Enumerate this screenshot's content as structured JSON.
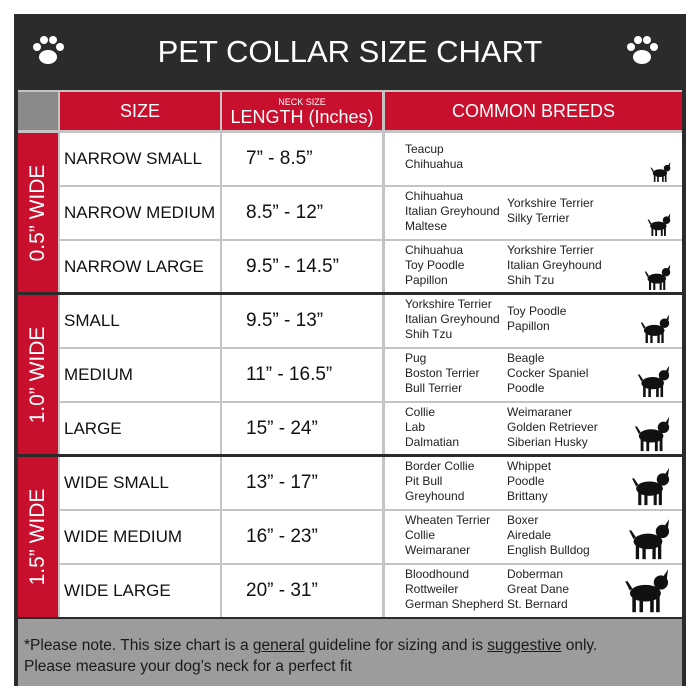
{
  "header": {
    "title": "PET COLLAR SIZE CHART"
  },
  "columns": {
    "size": "SIZE",
    "length_note": "NECK SIZE",
    "length": "LENGTH (Inches)",
    "breeds": "COMMON BREEDS"
  },
  "groups": [
    {
      "label": "0.5” WIDE",
      "rows": [
        {
          "size": "NARROW SMALL",
          "length": "7” - 8.5”",
          "breeds": [
            [
              "Teacup",
              "Chihuahua"
            ]
          ]
        },
        {
          "size": "NARROW MEDIUM",
          "length": "8.5” - 12”",
          "breeds": [
            [
              "Chihuahua",
              "Italian Greyhound",
              "Maltese"
            ],
            [
              "Yorkshire Terrier",
              "Silky Terrier"
            ]
          ]
        },
        {
          "size": "NARROW LARGE",
          "length": "9.5” - 14.5”",
          "breeds": [
            [
              "Chihuahua",
              "Toy Poodle",
              "Papillon"
            ],
            [
              "Yorkshire Terrier",
              "Italian Greyhound",
              "Shih Tzu"
            ]
          ]
        }
      ]
    },
    {
      "label": "1.0” WIDE",
      "rows": [
        {
          "size": "SMALL",
          "length": "9.5” - 13”",
          "breeds": [
            [
              "Yorkshire Terrier",
              "Italian Greyhound",
              "Shih Tzu"
            ],
            [
              "Toy Poodle",
              "Papillon"
            ]
          ]
        },
        {
          "size": "MEDIUM",
          "length": "11” - 16.5”",
          "breeds": [
            [
              "Pug",
              "Boston Terrier",
              "Bull Terrier"
            ],
            [
              "Beagle",
              "Cocker Spaniel",
              "Poodle"
            ]
          ]
        },
        {
          "size": "LARGE",
          "length": "15” - 24”",
          "breeds": [
            [
              "Collie",
              "Lab",
              "Dalmatian"
            ],
            [
              "Weimaraner",
              "Golden Retriever",
              "Siberian Husky"
            ]
          ]
        }
      ]
    },
    {
      "label": "1.5” WIDE",
      "rows": [
        {
          "size": "WIDE SMALL",
          "length": "13” - 17”",
          "breeds": [
            [
              "Border Collie",
              "Pit Bull",
              "Greyhound"
            ],
            [
              "Whippet",
              "Poodle",
              "Brittany"
            ]
          ]
        },
        {
          "size": "WIDE MEDIUM",
          "length": "16” - 23”",
          "breeds": [
            [
              "Wheaten Terrier",
              "Collie",
              "Weimaraner"
            ],
            [
              "Boxer",
              "Airedale",
              "English Bulldog"
            ]
          ]
        },
        {
          "size": "WIDE LARGE",
          "length": "20” - 31”",
          "breeds": [
            [
              "Bloodhound",
              "Rottweiler",
              "German Shepherd"
            ],
            [
              "Doberman",
              "Great Dane",
              "St. Bernard"
            ]
          ]
        }
      ]
    }
  ],
  "note": {
    "line1": [
      "*Please note. This size chart is a ",
      "general",
      " guideline for sizing and is ",
      "suggestive",
      " only."
    ],
    "line2": "Please measure your dog’s neck for a perfect fit"
  }
}
